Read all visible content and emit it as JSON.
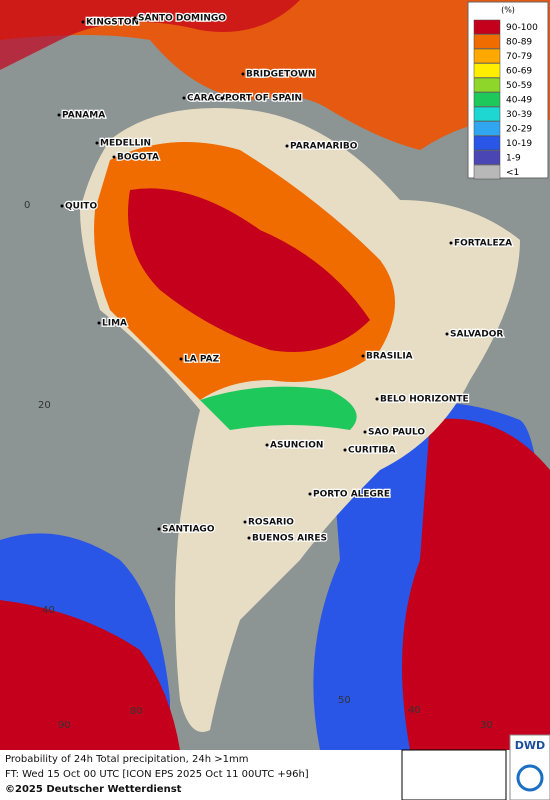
{
  "map": {
    "legend": {
      "title": "(%)",
      "items": [
        {
          "label": "90-100",
          "color": "#c4001c"
        },
        {
          "label": "80-89",
          "color": "#f06c00"
        },
        {
          "label": "70-79",
          "color": "#ffa800"
        },
        {
          "label": "60-69",
          "color": "#ffee00"
        },
        {
          "label": "50-59",
          "color": "#8fd62a"
        },
        {
          "label": "40-49",
          "color": "#1fc85a"
        },
        {
          "label": "30-39",
          "color": "#1ed6d2"
        },
        {
          "label": "20-29",
          "color": "#30a6f0"
        },
        {
          "label": "10-19",
          "color": "#2a56e8"
        },
        {
          "label": "1-9",
          "color": "#4a46b4"
        },
        {
          "label": "<1",
          "color": "#b8b8b8"
        }
      ]
    },
    "cities": [
      "KINGSTON",
      "SANTO DOMINGO",
      "BRIDGETOWN",
      "CARACAS",
      "PORT OF SPAIN",
      "PANAMA",
      "MEDELLIN",
      "BOGOTA",
      "PARAMARIBO",
      "QUITO",
      "FORTALEZA",
      "LIMA",
      "SALVADOR",
      "BRASILIA",
      "LA PAZ",
      "BELO HORIZONTE",
      "SAO PAULO",
      "ASUNCION",
      "CURITIBA",
      "PORTO ALEGRE",
      "ROSARIO",
      "BUENOS AIRES",
      "SANTIAGO"
    ],
    "grid_labels": [
      "0",
      "20",
      "40",
      "90",
      "80",
      "50",
      "40",
      "30"
    ],
    "footer": {
      "title": "Probability of 24h Total precipitation, 24h >1mm",
      "forecast": "FT: Wed 15 Oct 00 UTC [ICON EPS 2025 Oct 11 00UTC +96h]",
      "copyright": "©2025 Deutscher Wetterdienst"
    },
    "logo": "DWD"
  }
}
